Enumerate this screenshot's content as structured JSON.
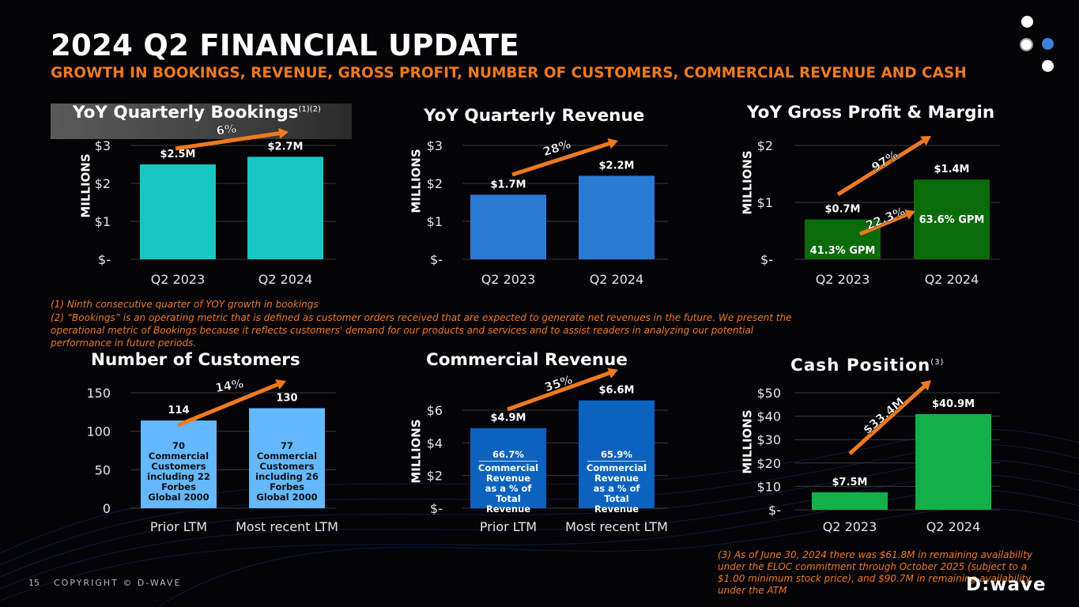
{
  "header": {
    "title": "2024 Q2 FINANCIAL UPDATE",
    "subtitle": "GROWTH IN BOOKINGS, REVENUE, GROSS PROFIT, NUMBER OF CUSTOMERS, COMMERCIAL REVENUE AND CASH"
  },
  "colors": {
    "accent_orange": "#f07a1e",
    "bookings_bar": "#18c7c2",
    "revenue_bar": "#2b7ad6",
    "gross_profit_bar": "#0a6b0a",
    "customers_bar": "#63b8ff",
    "commercial_bar": "#0b63bf",
    "cash_bar": "#13b04a"
  },
  "panels": {
    "bookings": {
      "title": "YoY Quarterly Bookings",
      "sup": "(1)(2)",
      "ylabel": "MILLIONS",
      "growth": "6%"
    },
    "revenue": {
      "title": "YoY Quarterly Revenue",
      "ylabel": "MILLIONS",
      "growth": "28%"
    },
    "gross_profit": {
      "title": "YoY Gross Profit & Margin",
      "ylabel": "MILLIONS",
      "growth": "97%",
      "margin_growth": "22.3%",
      "gpm": [
        "41.3% GPM",
        "63.6% GPM"
      ]
    },
    "customers": {
      "title": "Number of Customers",
      "growth": "14%",
      "inner": [
        [
          "70",
          "Commercial",
          "Customers",
          "including 22",
          "Forbes",
          "Global 2000"
        ],
        [
          "77",
          "Commercial",
          "Customers",
          "including 26",
          "Forbes",
          "Global 2000"
        ]
      ]
    },
    "commercial": {
      "title": "Commercial Revenue",
      "ylabel": "MILLIONS",
      "growth": "35%",
      "pct": [
        "66.7%",
        "65.9%"
      ],
      "inner": [
        "Commercial",
        "Revenue",
        "as a % of Total",
        "Revenue"
      ]
    },
    "cash": {
      "title": "Cash Position",
      "sup": "(3)",
      "ylabel": "MILLIONS",
      "growth": "$33.4M"
    }
  },
  "chart_data": [
    {
      "type": "bar",
      "title": "YoY Quarterly Bookings",
      "categories": [
        "Q2 2023",
        "Q2 2024"
      ],
      "values": [
        2.5,
        2.7
      ],
      "labels": [
        "$2.5M",
        "$2.7M"
      ],
      "yticks": [
        "$-",
        "$1",
        "$2",
        "$3"
      ],
      "ylim": [
        0,
        3
      ],
      "ylabel": "MILLIONS"
    },
    {
      "type": "bar",
      "title": "YoY Quarterly Revenue",
      "categories": [
        "Q2 2023",
        "Q2 2024"
      ],
      "values": [
        1.7,
        2.2
      ],
      "labels": [
        "$1.7M",
        "$2.2M"
      ],
      "yticks": [
        "$-",
        "$1",
        "$2",
        "$3"
      ],
      "ylim": [
        0,
        3
      ],
      "ylabel": "MILLIONS"
    },
    {
      "type": "bar",
      "title": "YoY Gross Profit & Margin",
      "categories": [
        "Q2 2023",
        "Q2 2024"
      ],
      "values": [
        0.7,
        1.4
      ],
      "labels": [
        "$0.7M",
        "$1.4M"
      ],
      "yticks": [
        "$-",
        "$1",
        "$2"
      ],
      "ylim": [
        0,
        2
      ],
      "ylabel": "MILLIONS"
    },
    {
      "type": "bar",
      "title": "Number of Customers",
      "categories": [
        "Prior LTM",
        "Most recent LTM"
      ],
      "values": [
        114,
        130
      ],
      "labels": [
        "114",
        "130"
      ],
      "yticks": [
        "0",
        "50",
        "100",
        "150"
      ],
      "ylim": [
        0,
        150
      ]
    },
    {
      "type": "bar",
      "title": "Commercial Revenue",
      "categories": [
        "Prior LTM",
        "Most recent LTM"
      ],
      "values": [
        4.9,
        6.6
      ],
      "labels": [
        "$4.9M",
        "$6.6M"
      ],
      "yticks": [
        "$-",
        "$2",
        "$4",
        "$6"
      ],
      "ylim": [
        0,
        7
      ],
      "ylabel": "MILLIONS"
    },
    {
      "type": "bar",
      "title": "Cash Position",
      "categories": [
        "Q2 2023",
        "Q2 2024"
      ],
      "values": [
        7.5,
        40.9
      ],
      "labels": [
        "$7.5M",
        "$40.9M"
      ],
      "yticks": [
        "$-",
        "$10",
        "$20",
        "$30",
        "$40",
        "$50"
      ],
      "ylim": [
        0,
        50
      ],
      "ylabel": "MILLIONS"
    }
  ],
  "notes": {
    "n1": "(1)   Ninth consecutive quarter of YOY growth in bookings",
    "n2": "(2)  “Bookings” is an operating metric that is defined as customer orders received that are expected to generate net revenues in the future.  We present the operational metric of Bookings because it reflects customers' demand for our products and services and to assist readers in analyzing our potential performance in future periods.",
    "n3": "(3) As of June 30, 2024 there was $61.8M in remaining availability under the ELOC commitment through October 2025 (subject to a $1.00 minimum stock price), and $90.7M in remaining availability under the ATM"
  },
  "footer": {
    "page": "15",
    "copyright": "COPYRIGHT © D-WAVE",
    "logo": "D:wave"
  }
}
